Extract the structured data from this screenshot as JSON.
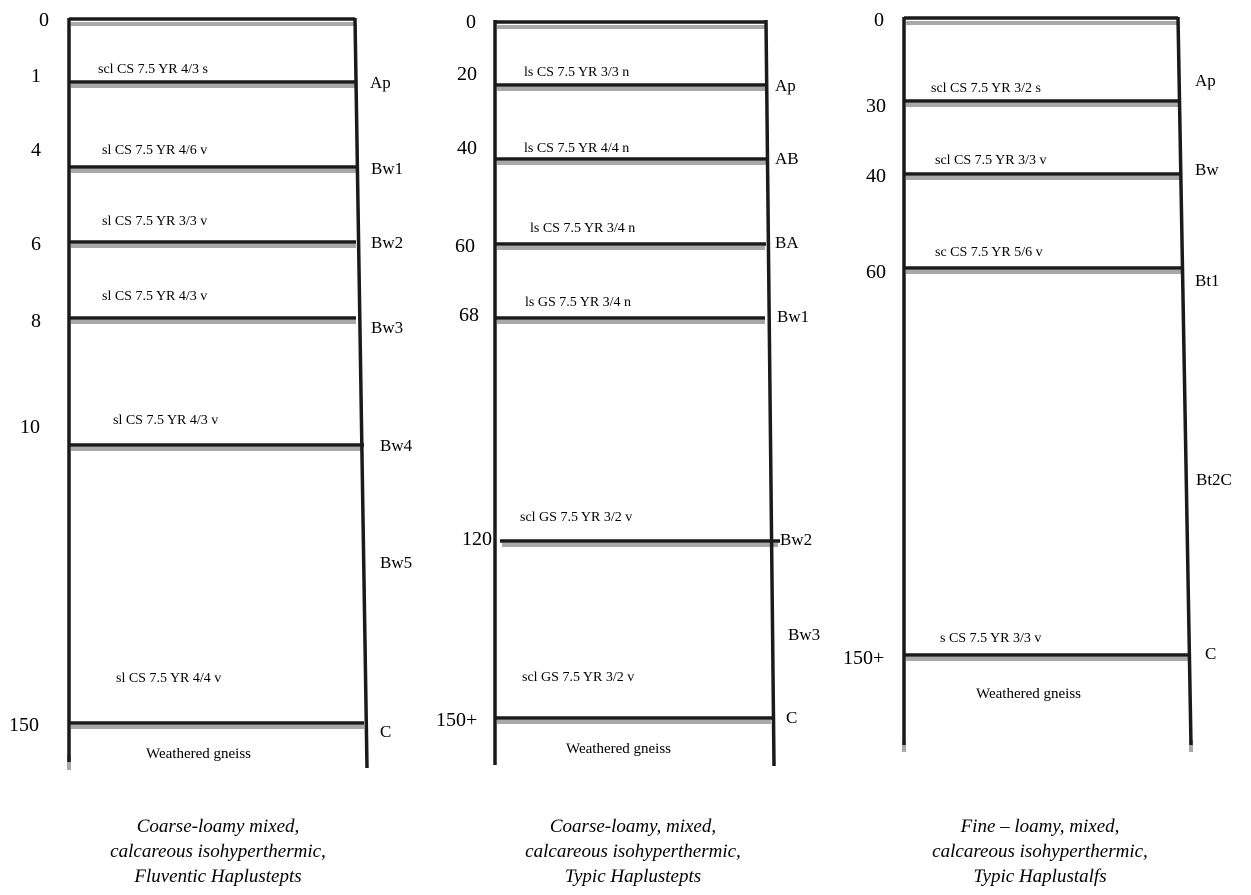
{
  "profiles": [
    {
      "depths": [
        "0",
        "1",
        "4",
        "6",
        "8",
        "10",
        "150"
      ],
      "horizons": [
        "Ap",
        "Bw1",
        "Bw2",
        "Bw3",
        "Bw4",
        "Bw5",
        "C"
      ],
      "descriptions": [
        "scl CS 7.5 YR  4/3 s",
        "sl CS 7.5 YR  4/6 v",
        "sl CS 7.5 YR  3/3 v",
        "sl CS 7.5 YR  4/3 v",
        "sl CS 7.5 YR  4/3  v",
        "sl CS 7.5 YR  4/4  v"
      ],
      "base_note": "Weathered gneiss",
      "caption": [
        "Coarse-loamy mixed,",
        "calcareous isohyperthermic,",
        "Fluventic Haplustepts"
      ]
    },
    {
      "depths": [
        "0",
        "20",
        "40",
        "60",
        "68",
        "120",
        "150+"
      ],
      "horizons": [
        "Ap",
        "AB",
        "BA",
        "Bw1",
        "Bw2",
        "Bw3",
        "C"
      ],
      "descriptions": [
        "ls CS 7.5 YR  3/3  n",
        "ls CS 7.5 YR  4/4  n",
        "ls CS 7.5 YR  3/4  n",
        "ls GS 7.5 YR  3/4   n",
        "scl GS 7.5 YR  3/2  v",
        "scl GS 7.5 YR  3/2  v"
      ],
      "base_note": "Weathered gneiss",
      "caption": [
        "Coarse-loamy, mixed,",
        "calcareous isohyperthermic,",
        "Typic Haplustepts"
      ]
    },
    {
      "depths": [
        "0",
        "30",
        "40",
        "60",
        "150+"
      ],
      "horizons": [
        "Ap",
        "Bw",
        "Bt1",
        "Bt2C",
        "C"
      ],
      "descriptions": [
        "scl CS 7.5 YR 3/2  s",
        "scl  CS 7.5 YR 3/3  v",
        "sc CS  7.5 YR 5/6  v",
        "s CS  7.5 YR 3/3  v"
      ],
      "base_note": "Weathered gneiss",
      "caption": [
        "Fine – loamy, mixed,",
        "calcareous isohyperthermic,",
        "Typic Haplustalfs"
      ]
    }
  ]
}
